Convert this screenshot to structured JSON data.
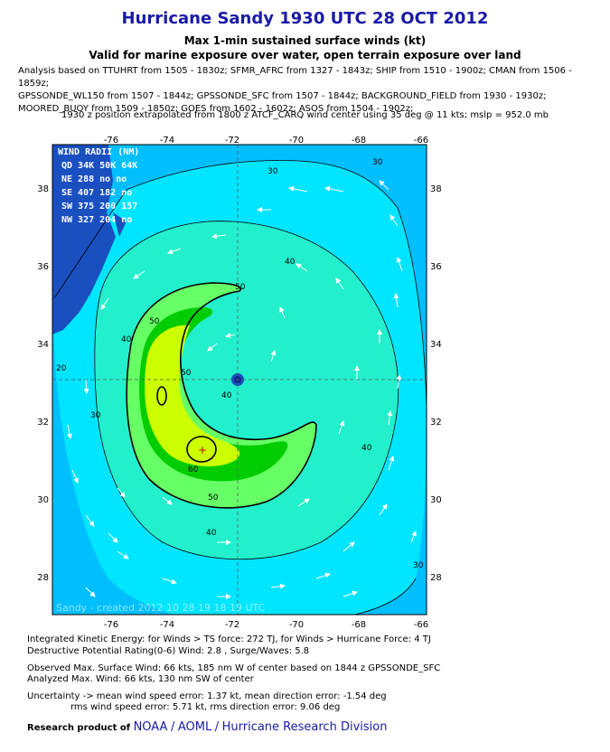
{
  "header": {
    "title": "Hurricane Sandy 1930 UTC 28 OCT 2012",
    "subtitle1": "Max 1-min sustained surface winds (kt)",
    "subtitle2": "Valid for marine exposure over water, open terrain exposure over land"
  },
  "analysis_lines": [
    "Analysis based on TTUHRT from 1505 - 1830z; SFMR_AFRC from 1327 - 1843z; SHIP from 1510 - 1900z; CMAN from 1506 - 1859z;",
    "GPSSONDE_WL150 from 1507 - 1844z; GPSSONDE_SFC from 1507 - 1844z; BACKGROUND_FIELD from 1930 - 1930z;",
    "MOORED_BUOY from 1509 - 1850z; GOES from 1602 - 1602z; ASOS from 1504 - 1902z;"
  ],
  "position_note": "1930 z position extrapolated from 1800 z ATCF_CARQ wind center using 35 deg @ 11 kts; mslp = 952.0 mb",
  "map": {
    "lon_ticks": [
      "-76",
      "-74",
      "-72",
      "-70",
      "-68",
      "-66"
    ],
    "lat_ticks": [
      "38",
      "36",
      "34",
      "32",
      "30",
      "28"
    ],
    "contour_labels": [
      "30",
      "40",
      "50",
      "60",
      "40",
      "50",
      "30",
      "40",
      "20",
      "30",
      "40",
      "30",
      "50",
      "40",
      "50"
    ],
    "wind_radii": {
      "title": "WIND RADII (NM)",
      "header": "QD  34K  50K  64K",
      "rows": [
        "NE  288   no   no",
        "SE  407  182   no",
        "SW  375  200  157",
        "NW  327  204   no"
      ]
    },
    "watermark": "Sandy - created  2012 10 28 19 18 19 UTC",
    "colors": {
      "ocean_low": "#00bfff",
      "c30": "#00e5ff",
      "c40": "#22f0cc",
      "c50": "#66ff66",
      "c60": "#00cc00",
      "c64": "#ccff00",
      "land": "#1a4fc0"
    }
  },
  "footer": {
    "ike": "Integrated Kinetic Energy: for Winds > TS force: 272 TJ, for Winds > Hurricane Force: 4 TJ",
    "dp": "Destructive Potential Rating(0-6)  Wind: 2.8 , Surge/Waves: 5.8",
    "obs": "Observed Max. Surface Wind: 66 kts, 185 nm W of center based on 1844 z GPSSONDE_SFC",
    "analyzed": "Analyzed Max. Wind: 66 kts, 130 nm  SW of center",
    "unc1": "Uncertainty -> mean wind speed error: 1.37 kt, mean direction error:  -1.54 deg",
    "unc2": "rms wind speed error: 5.71 kt, rms direction error: 9.06 deg",
    "research_label": "Research product of",
    "org1": "NOAA",
    "org2": "AOML",
    "org3": "Hurricane Research Division"
  }
}
